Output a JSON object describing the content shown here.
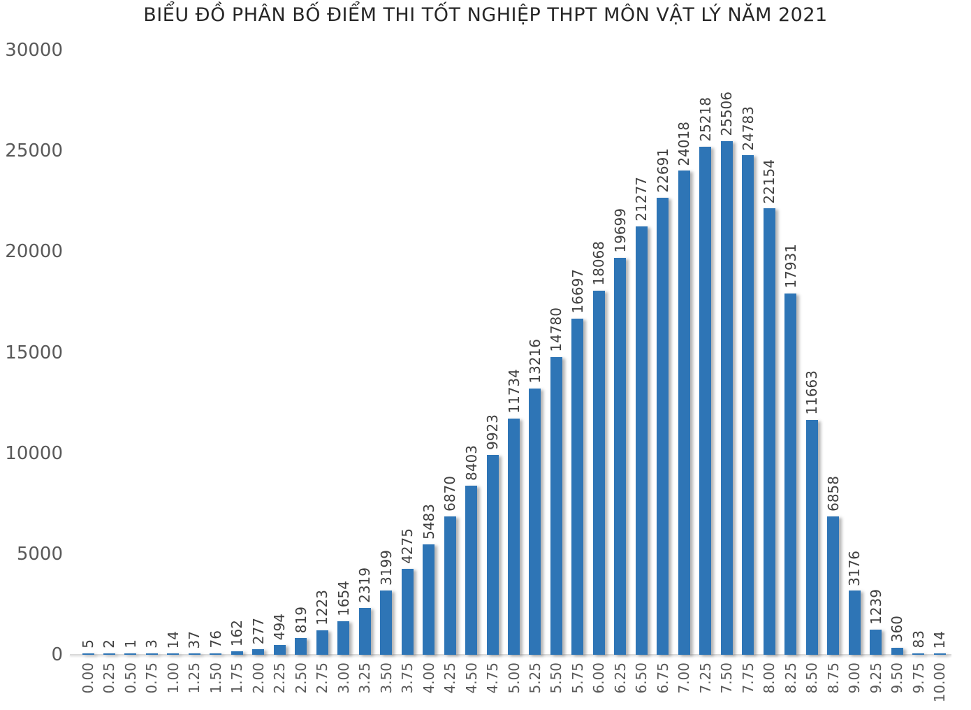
{
  "chart_data": {
    "type": "bar",
    "title": "BIỂU ĐỒ PHÂN BỐ ĐIỂM THI TỐT NGHIỆP THPT MÔN VẬT LÝ NĂM 2021",
    "xlabel": "",
    "ylabel": "",
    "categories": [
      "0.00",
      "0.25",
      "0.50",
      "0.75",
      "1.00",
      "1.25",
      "1.50",
      "1.75",
      "2.00",
      "2.25",
      "2.50",
      "2.75",
      "3.00",
      "3.25",
      "3.50",
      "3.75",
      "4.00",
      "4.25",
      "4.50",
      "4.75",
      "5.00",
      "5.25",
      "5.50",
      "5.75",
      "6.00",
      "6.25",
      "6.50",
      "6.75",
      "7.00",
      "7.25",
      "7.50",
      "7.75",
      "8.00",
      "8.25",
      "8.50",
      "8.75",
      "9.00",
      "9.25",
      "9.50",
      "9.75",
      "10.00"
    ],
    "values": [
      5,
      2,
      1,
      3,
      14,
      37,
      76,
      162,
      277,
      494,
      819,
      1223,
      1654,
      2319,
      3199,
      4275,
      5483,
      6870,
      8403,
      9923,
      11734,
      13216,
      14780,
      16697,
      18068,
      19699,
      21277,
      22691,
      24018,
      25218,
      25506,
      24783,
      22154,
      17931,
      11663,
      6858,
      3176,
      1239,
      360,
      83,
      14
    ],
    "value_labels_shown": true,
    "value_labels_rotated": true,
    "ylim": [
      0,
      30000
    ],
    "yticks": [
      "0",
      "5000",
      "10000",
      "15000",
      "20000",
      "25000",
      "30000"
    ],
    "grid": false,
    "legend": "none",
    "bar_color": "#2E75B6",
    "value_label_color": "#404040",
    "axis_label_color": "#595959",
    "title_color": "#262626",
    "axis_line_color": "#d9d9d9"
  }
}
